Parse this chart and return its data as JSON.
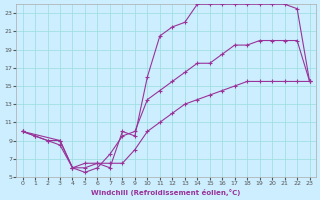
{
  "xlabel": "Windchill (Refroidissement éolien,°C)",
  "xlim": [
    -0.5,
    23.5
  ],
  "ylim": [
    5,
    24
  ],
  "yticks": [
    5,
    7,
    9,
    11,
    13,
    15,
    17,
    19,
    21,
    23
  ],
  "xticks": [
    0,
    1,
    2,
    3,
    4,
    5,
    6,
    7,
    8,
    9,
    10,
    11,
    12,
    13,
    14,
    15,
    16,
    17,
    18,
    19,
    20,
    21,
    22,
    23
  ],
  "bg_color": "#cceeff",
  "grid_color": "#99dddd",
  "line_color": "#993399",
  "series": [
    {
      "x": [
        0,
        1,
        2,
        3,
        4,
        5,
        6,
        7,
        8,
        9,
        10,
        11,
        12,
        13,
        14,
        15,
        16,
        17,
        18,
        19,
        20,
        21,
        22,
        23
      ],
      "y": [
        10,
        9.5,
        9.0,
        9.0,
        6.0,
        6.5,
        6.5,
        6.0,
        10.0,
        9.5,
        16.0,
        20.5,
        21.5,
        22.0,
        24.0,
        24.0,
        24.0,
        24.0,
        24.0,
        24.0,
        24.0,
        24.0,
        23.5,
        15.5
      ]
    },
    {
      "x": [
        0,
        1,
        2,
        3,
        4,
        5,
        6,
        7,
        8,
        9,
        10,
        11,
        12,
        13,
        14,
        15,
        16,
        17,
        18,
        19,
        20,
        21,
        22,
        23
      ],
      "y": [
        10,
        9.5,
        9.0,
        8.5,
        6.0,
        5.5,
        6.0,
        7.5,
        9.5,
        10.0,
        13.5,
        14.5,
        15.5,
        16.5,
        17.5,
        17.5,
        18.5,
        19.5,
        19.5,
        20.0,
        20.0,
        20.0,
        20.0,
        15.5
      ]
    },
    {
      "x": [
        0,
        3,
        4,
        5,
        6,
        7,
        8,
        9,
        10,
        11,
        12,
        13,
        14,
        15,
        16,
        17,
        18,
        19,
        20,
        21,
        22,
        23
      ],
      "y": [
        10,
        9.0,
        6.0,
        6.0,
        6.5,
        6.5,
        6.5,
        8.0,
        10.0,
        11.0,
        12.0,
        13.0,
        13.5,
        14.0,
        14.5,
        15.0,
        15.5,
        15.5,
        15.5,
        15.5,
        15.5,
        15.5
      ]
    }
  ]
}
